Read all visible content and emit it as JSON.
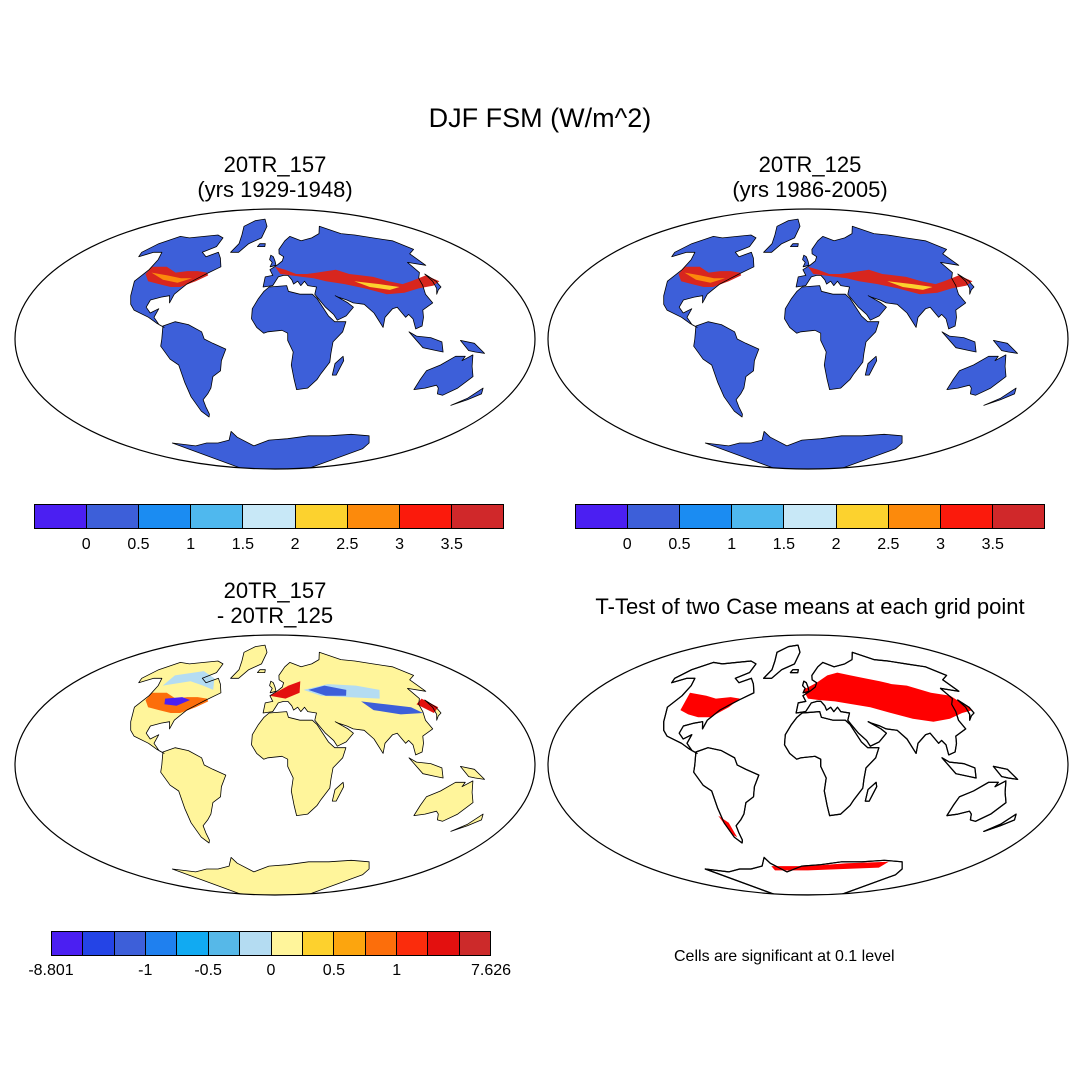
{
  "title": "DJF FSM (W/m^2)",
  "panels": [
    {
      "title_line1": "20TR_157",
      "title_line2": "(yrs 1929-1948)",
      "field": "mean"
    },
    {
      "title_line1": "20TR_125",
      "title_line2": "(yrs 1986-2005)",
      "field": "mean"
    },
    {
      "title_line1": "20TR_157",
      "title_line2": "- 20TR_125",
      "field": "difference"
    },
    {
      "title_line1": "T-Test of two Case means at each grid point",
      "title_line2": "",
      "field": "significance"
    }
  ],
  "colorbar_mean": {
    "colors": [
      "#4b1ff2",
      "#3d5fd9",
      "#1b8cf2",
      "#4fb8ee",
      "#c8e8f7",
      "#fcd22e",
      "#fc8a0c",
      "#fb1a0c",
      "#d0282a"
    ],
    "labels": [
      "0",
      "0.5",
      "1",
      "1.5",
      "2",
      "2.5",
      "3",
      "3.5"
    ]
  },
  "colorbar_diff": {
    "colors": [
      "#4b1ff2",
      "#2444e6",
      "#3d5fd9",
      "#1f80ef",
      "#11aaf2",
      "#56b8e8",
      "#b4dcf2",
      "#fff59b",
      "#fdd12d",
      "#fca50e",
      "#fc6e0b",
      "#fb2c0c",
      "#e3100f",
      "#cc2a2a"
    ],
    "labels": [
      "-8.801",
      "-1",
      "-0.5",
      "0",
      "0.5",
      "1",
      "7.626"
    ]
  },
  "significance_note": "Cells are significant at 0.1 level",
  "colors": {
    "land_mean": "#3d5fd9",
    "land_diff": "#fff59b",
    "significant": "#ff0000",
    "snow_high": "#d8261e",
    "snow_mid": "#fc8a0c",
    "snow_low": "#fcd22e"
  }
}
